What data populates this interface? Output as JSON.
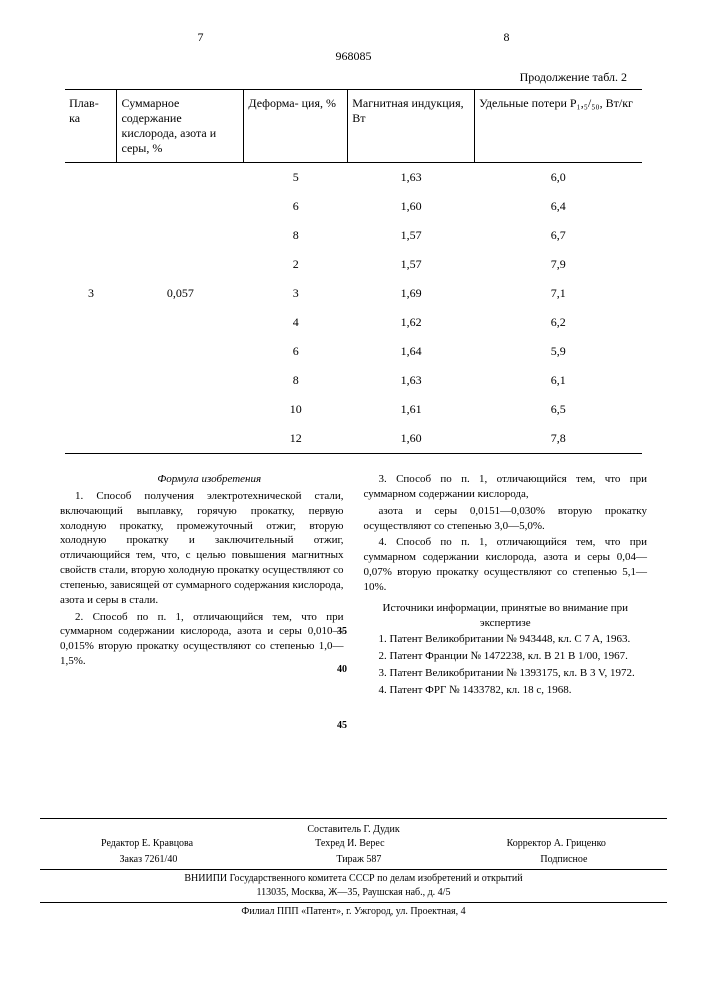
{
  "header": {
    "page_left": "7",
    "page_right": "8",
    "doc_number": "968085",
    "table_continuation": "Продолжение табл. 2"
  },
  "table": {
    "columns": [
      "Плав-\nка",
      "Суммарное содержание кислорода, азота и серы, %",
      "Деформа-\nция, %",
      "Магнитная индукция, Вт",
      "Удельные потери P₁,₅/₅₀, Вт/кг"
    ],
    "rows": [
      [
        "",
        "",
        "5",
        "1,63",
        "6,0"
      ],
      [
        "",
        "",
        "6",
        "1,60",
        "6,4"
      ],
      [
        "",
        "",
        "8",
        "1,57",
        "6,7"
      ],
      [
        "",
        "",
        "2",
        "1,57",
        "7,9"
      ],
      [
        "3",
        "0,057",
        "3",
        "1,69",
        "7,1"
      ],
      [
        "",
        "",
        "4",
        "1,62",
        "6,2"
      ],
      [
        "",
        "",
        "6",
        "1,64",
        "5,9"
      ],
      [
        "",
        "",
        "8",
        "1,63",
        "6,1"
      ],
      [
        "",
        "",
        "10",
        "1,61",
        "6,5"
      ],
      [
        "",
        "",
        "12",
        "1,60",
        "7,8"
      ]
    ]
  },
  "claims": {
    "title": "Формула изобретения",
    "p1": "1. Способ получения электротехнической стали, включающий выплавку, горячую прокатку, первую холодную прокатку, промежуточный отжиг, вторую холодную прокатку и заключительный отжиг, отличающийся тем, что, с целью повышения магнитных свойств стали, вторую холодную прокатку осуществляют со степенью, зависящей от суммарного содержания кислорода, азота и серы в стали.",
    "p2": "2. Способ по п. 1, отличающийся тем, что при суммарном содержании кислорода, азота и серы 0,010—0,015% вторую прокатку осуществляют со степенью 1,0—1,5%.",
    "p3": "3. Способ по п. 1, отличающийся тем, что при суммарном содержании кислорода,",
    "p4": "азота и серы 0,0151—0,030% вторую прокатку осуществляют со степенью 3,0—5,0%.",
    "p5": "4. Способ по п. 1, отличающийся тем, что при суммарном содержании кислорода, азота и серы 0,04—0,07% вторую прокатку осуществляют со степенью 5,1—10%.",
    "sources_title": "Источники информации, принятые во внимание при экспертизе",
    "s1": "1. Патент Великобритании № 943448, кл. C 7 A, 1963.",
    "s2": "2. Патент Франции № 1472238, кл. B 21 B 1/00, 1967.",
    "s3": "3. Патент Великобритании № 1393175, кл. B 3 V, 1972.",
    "s4": "4. Патент ФРГ № 1433782, кл. 18 c, 1968."
  },
  "colophon": {
    "compiler": "Составитель Г. Дудик",
    "editor": "Редактор Е. Кравцова",
    "techred": "Техред И. Верес",
    "corrector": "Корректор А. Гриценко",
    "order": "Заказ 7261/40",
    "tirazh": "Тираж 587",
    "podpisnoe": "Подписное",
    "vniip": "ВНИИПИ Государственного комитета СССР по делам изобретений и открытий",
    "address1": "113035, Москва, Ж—35, Раушская наб., д. 4/5",
    "address2": "Филиал ППП «Патент», г. Ужгород, ул. Проектная, 4"
  }
}
